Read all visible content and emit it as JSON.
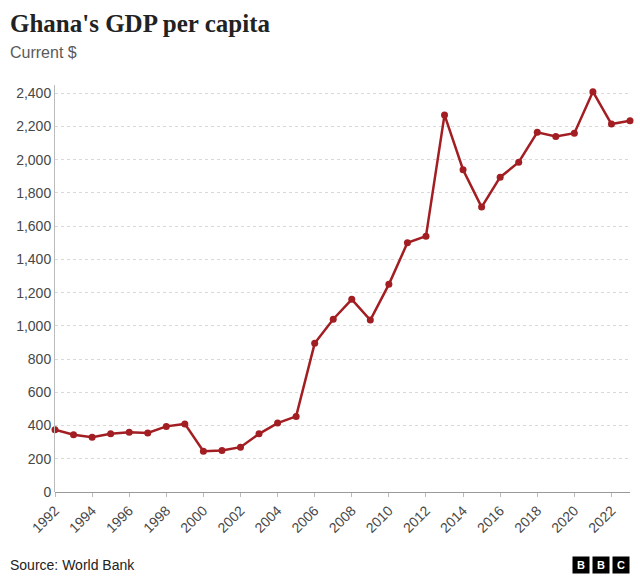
{
  "chart_data": {
    "type": "line",
    "title": "Ghana's GDP per capita",
    "subtitle": "Current $",
    "source": "Source: World Bank",
    "logo": "BBC",
    "x": [
      1992,
      1993,
      1994,
      1995,
      1996,
      1997,
      1998,
      1999,
      2000,
      2001,
      2002,
      2003,
      2004,
      2005,
      2006,
      2007,
      2008,
      2009,
      2010,
      2011,
      2012,
      2013,
      2014,
      2015,
      2016,
      2017,
      2018,
      2019,
      2020,
      2021,
      2022,
      2023
    ],
    "values": [
      375,
      345,
      330,
      350,
      360,
      355,
      395,
      410,
      245,
      250,
      270,
      350,
      415,
      455,
      895,
      1040,
      1160,
      1035,
      1250,
      1500,
      1540,
      2270,
      1940,
      1715,
      1895,
      1985,
      2165,
      2140,
      2160,
      2410,
      2215,
      2235
    ],
    "color": "#a21e22",
    "marker": "circle",
    "line_style": "solid",
    "xlim": [
      1992,
      2023
    ],
    "xticks": [
      1992,
      1994,
      1996,
      1998,
      2000,
      2002,
      2004,
      2006,
      2008,
      2010,
      2012,
      2014,
      2016,
      2018,
      2020,
      2022
    ],
    "ylim": [
      0,
      2450
    ],
    "yticks": [
      0,
      200,
      400,
      600,
      800,
      {
        "value": 1000,
        "label": "1,000"
      },
      {
        "value": 1200,
        "label": "1,200"
      },
      {
        "value": 1400,
        "label": "1,400"
      },
      {
        "value": 1600,
        "label": "1,600"
      },
      {
        "value": 1800,
        "label": "1,800"
      },
      {
        "value": 2000,
        "label": "2,000"
      },
      {
        "value": 2200,
        "label": "2,200"
      },
      {
        "value": 2400,
        "label": "2,400"
      }
    ],
    "grid": true
  }
}
